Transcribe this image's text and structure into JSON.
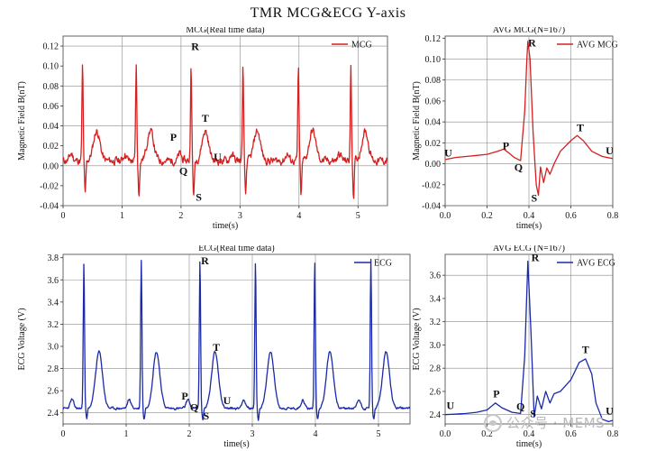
{
  "title": "TMR  MCG&ECG  Y-axis",
  "watermark": "公众号 · MEMS",
  "chart_data": [
    {
      "id": "mcg-rt",
      "type": "line",
      "title": "MCG(Real time data)",
      "xlabel": "time(s)",
      "ylabel": "Magnetic Field B(nT)",
      "xlim": [
        0,
        5.5
      ],
      "ylim": [
        -0.04,
        0.13
      ],
      "xticks": [
        0,
        1,
        2,
        3,
        4,
        5
      ],
      "yticks": [
        -0.04,
        -0.02,
        0.0,
        0.02,
        0.04,
        0.06,
        0.08,
        0.1,
        0.12
      ],
      "ytick_labels": [
        "-0.04",
        "-0.02",
        "0.00",
        "0.02",
        "0.04",
        "0.06",
        "0.08",
        "0.10",
        "0.12"
      ],
      "grid": true,
      "hlines": [
        -0.04,
        0.0,
        0.04,
        0.08,
        0.12
      ],
      "vlines": [
        1,
        2,
        3,
        4,
        5
      ],
      "legend": {
        "label": "MCG",
        "position": "top-right"
      },
      "color": "#d42020",
      "beats": [
        0.33,
        1.24,
        2.17,
        3.05,
        3.99,
        4.88
      ],
      "beat_shape": {
        "R": 0.1,
        "S": -0.03,
        "T": 0.035,
        "P": 0.012,
        "base": 0.005,
        "noise": 0.007
      },
      "annotations": [
        {
          "text": "R",
          "x": 2.24,
          "y": 0.116
        },
        {
          "text": "P",
          "x": 1.87,
          "y": 0.025
        },
        {
          "text": "T",
          "x": 2.41,
          "y": 0.044
        },
        {
          "text": "Q",
          "x": 2.04,
          "y": -0.009
        },
        {
          "text": "U",
          "x": 2.62,
          "y": 0.005
        },
        {
          "text": "S",
          "x": 2.3,
          "y": -0.035
        }
      ]
    },
    {
      "id": "mcg-avg",
      "type": "line",
      "title": "AVG MCG(N=167)",
      "xlabel": "time(s)",
      "ylabel": "Magnetic Field B(nT)",
      "xlim": [
        0,
        0.8
      ],
      "ylim": [
        -0.04,
        0.122
      ],
      "xticks": [
        0,
        0.2,
        0.4,
        0.6,
        0.8
      ],
      "xtick_labels": [
        "0.0",
        "0.2",
        "0.4",
        "0.6",
        "0.8"
      ],
      "yticks": [
        -0.04,
        -0.02,
        0.0,
        0.02,
        0.04,
        0.06,
        0.08,
        0.1,
        0.12
      ],
      "ytick_labels": [
        "-0.04",
        "-0.02",
        "0.00",
        "0.02",
        "0.04",
        "0.06",
        "0.08",
        "0.10",
        "0.12"
      ],
      "grid": true,
      "hlines": [
        -0.04,
        0.0,
        0.02,
        0.04,
        0.08,
        0.1
      ],
      "vlines": [
        0.2,
        0.4,
        0.6
      ],
      "legend": {
        "label": "AVG MCG",
        "position": "top-right"
      },
      "color": "#d42020",
      "points": [
        [
          0.0,
          0.004
        ],
        [
          0.05,
          0.006
        ],
        [
          0.1,
          0.007
        ],
        [
          0.15,
          0.008
        ],
        [
          0.2,
          0.009
        ],
        [
          0.25,
          0.012
        ],
        [
          0.28,
          0.014
        ],
        [
          0.3,
          0.011
        ],
        [
          0.33,
          0.006
        ],
        [
          0.36,
          0.003
        ],
        [
          0.38,
          0.05
        ],
        [
          0.39,
          0.1
        ],
        [
          0.395,
          0.117
        ],
        [
          0.405,
          0.1
        ],
        [
          0.42,
          0.03
        ],
        [
          0.435,
          -0.02
        ],
        [
          0.445,
          -0.03
        ],
        [
          0.455,
          -0.003
        ],
        [
          0.47,
          -0.018
        ],
        [
          0.485,
          -0.004
        ],
        [
          0.5,
          -0.01
        ],
        [
          0.52,
          0.0
        ],
        [
          0.55,
          0.012
        ],
        [
          0.6,
          0.022
        ],
        [
          0.63,
          0.027
        ],
        [
          0.66,
          0.022
        ],
        [
          0.7,
          0.012
        ],
        [
          0.75,
          0.007
        ],
        [
          0.8,
          0.005
        ]
      ],
      "annotations": [
        {
          "text": "U",
          "x": 0.015,
          "y": 0.007
        },
        {
          "text": "P",
          "x": 0.29,
          "y": 0.014
        },
        {
          "text": "R",
          "x": 0.415,
          "y": 0.112
        },
        {
          "text": "T",
          "x": 0.645,
          "y": 0.031
        },
        {
          "text": "U",
          "x": 0.785,
          "y": 0.009
        },
        {
          "text": "Q",
          "x": 0.35,
          "y": -0.007
        },
        {
          "text": "S",
          "x": 0.425,
          "y": -0.036
        }
      ]
    },
    {
      "id": "ecg-rt",
      "type": "line",
      "title": "ECG(Real time data)",
      "xlabel": "time(s)",
      "ylabel": "ECG Voltage (V)",
      "xlim": [
        0,
        5.5
      ],
      "ylim": [
        2.3,
        3.83
      ],
      "xticks": [
        0,
        1,
        2,
        3,
        4,
        5
      ],
      "yticks": [
        2.4,
        2.6,
        2.8,
        3.0,
        3.2,
        3.4,
        3.6,
        3.8
      ],
      "ytick_labels": [
        "2.4",
        "2.6",
        "2.8",
        "3.0",
        "3.2",
        "3.4",
        "3.6",
        "3.8"
      ],
      "grid": true,
      "hlines": [
        2.4,
        2.8,
        3.2,
        3.6
      ],
      "vlines": [
        1,
        2,
        3,
        4,
        5
      ],
      "legend": {
        "label": "ECG",
        "position": "top-right"
      },
      "color": "#1a2aa8",
      "beats": [
        0.33,
        1.24,
        2.17,
        3.05,
        3.99,
        4.88
      ],
      "beat_shape": {
        "R": 3.78,
        "S": 2.34,
        "T": 2.95,
        "P": 2.52,
        "base": 2.44,
        "noise": 0.02
      },
      "annotations": [
        {
          "text": "R",
          "x": 2.25,
          "y": 3.74
        },
        {
          "text": "T",
          "x": 2.43,
          "y": 2.96
        },
        {
          "text": "P",
          "x": 1.93,
          "y": 2.52
        },
        {
          "text": "Q",
          "x": 2.08,
          "y": 2.42
        },
        {
          "text": "U",
          "x": 2.6,
          "y": 2.48
        },
        {
          "text": "S",
          "x": 2.27,
          "y": 2.34
        }
      ]
    },
    {
      "id": "ecg-avg",
      "type": "line",
      "title": "AVG ECG (N=167)",
      "xlabel": "time(s)",
      "ylabel": "ECG Voltage (V)",
      "xlim": [
        0,
        0.8
      ],
      "ylim": [
        2.32,
        3.78
      ],
      "xticks": [
        0,
        0.2,
        0.4,
        0.6,
        0.8
      ],
      "xtick_labels": [
        "0.0",
        "0.2",
        "0.4",
        "0.6",
        "0.8"
      ],
      "yticks": [
        2.4,
        2.6,
        2.8,
        3.0,
        3.2,
        3.4,
        3.6
      ],
      "ytick_labels": [
        "2.4",
        "2.6",
        "2.8",
        "3.0",
        "3.2",
        "3.4",
        "3.6"
      ],
      "grid": true,
      "hlines": [
        2.4,
        2.8,
        3.2,
        3.6
      ],
      "vlines": [
        0.2,
        0.4,
        0.6
      ],
      "legend": {
        "label": "AVG ECG",
        "position": "top-right"
      },
      "color": "#1a2aa8",
      "points": [
        [
          0.0,
          2.4
        ],
        [
          0.1,
          2.41
        ],
        [
          0.15,
          2.42
        ],
        [
          0.2,
          2.44
        ],
        [
          0.24,
          2.5
        ],
        [
          0.27,
          2.46
        ],
        [
          0.32,
          2.42
        ],
        [
          0.36,
          2.41
        ],
        [
          0.38,
          2.9
        ],
        [
          0.395,
          3.72
        ],
        [
          0.41,
          3.1
        ],
        [
          0.425,
          2.38
        ],
        [
          0.44,
          2.56
        ],
        [
          0.46,
          2.45
        ],
        [
          0.48,
          2.6
        ],
        [
          0.5,
          2.5
        ],
        [
          0.52,
          2.58
        ],
        [
          0.55,
          2.6
        ],
        [
          0.6,
          2.7
        ],
        [
          0.64,
          2.85
        ],
        [
          0.67,
          2.88
        ],
        [
          0.7,
          2.75
        ],
        [
          0.72,
          2.5
        ],
        [
          0.75,
          2.36
        ],
        [
          0.78,
          2.34
        ],
        [
          0.8,
          2.35
        ]
      ],
      "annotations": [
        {
          "text": "U",
          "x": 0.025,
          "y": 2.45
        },
        {
          "text": "P",
          "x": 0.245,
          "y": 2.55
        },
        {
          "text": "R",
          "x": 0.43,
          "y": 3.72
        },
        {
          "text": "T",
          "x": 0.67,
          "y": 2.93
        },
        {
          "text": "Q",
          "x": 0.36,
          "y": 2.44
        },
        {
          "text": "S",
          "x": 0.42,
          "y": 2.38
        },
        {
          "text": "U",
          "x": 0.785,
          "y": 2.4
        }
      ]
    }
  ]
}
